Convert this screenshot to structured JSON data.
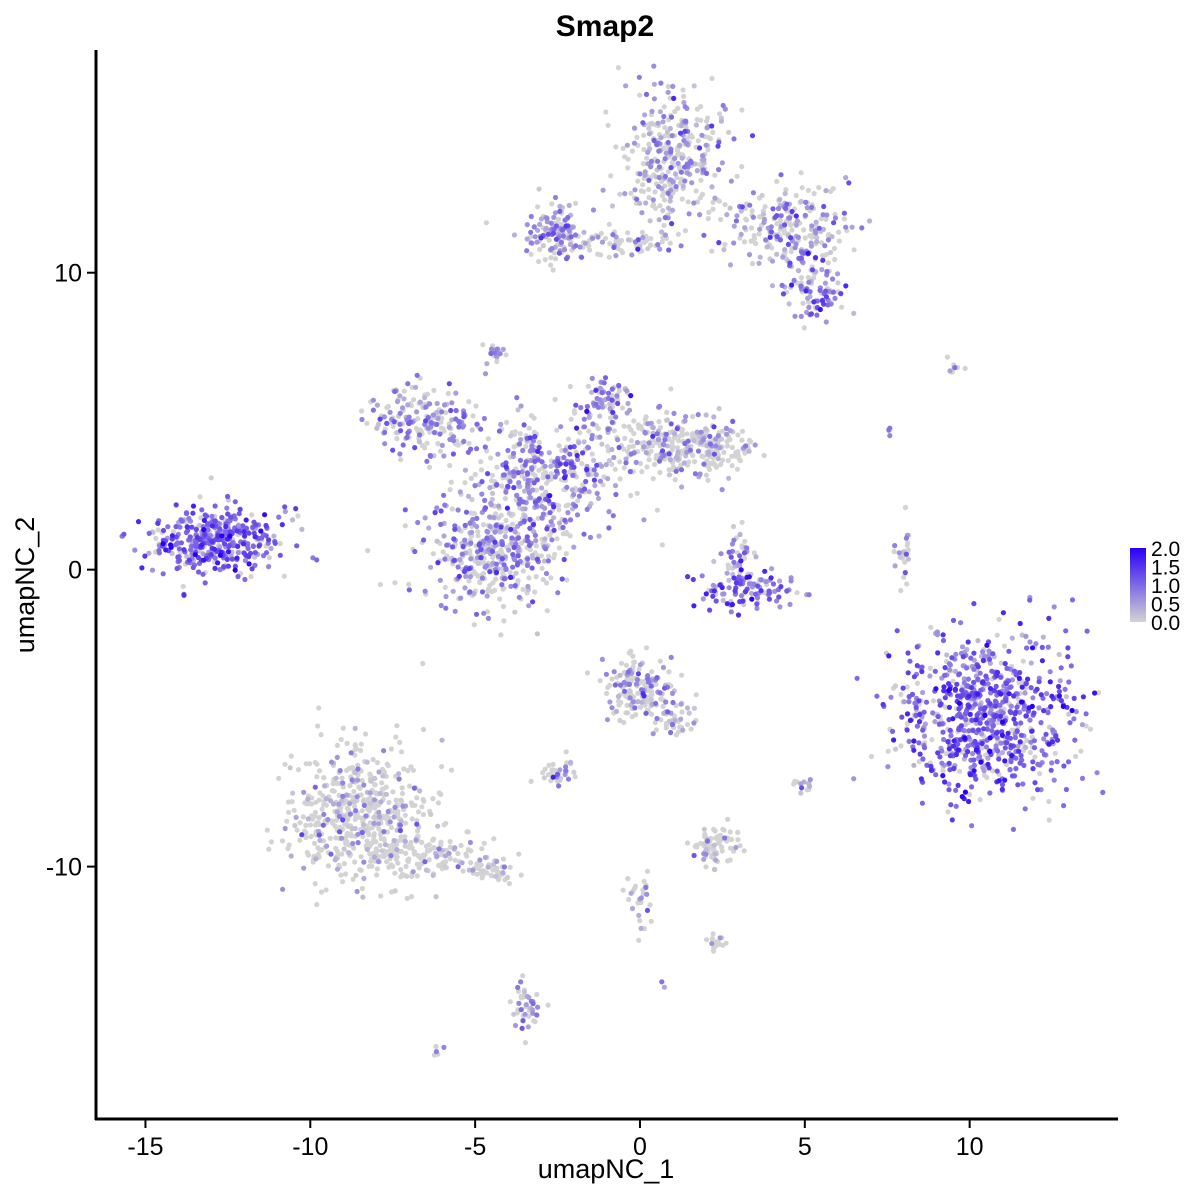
{
  "chart_data": {
    "type": "scatter",
    "title": "Smap2",
    "xlabel": "umapNC_1",
    "ylabel": "umapNC_2",
    "xlim": [
      -16.5,
      14.5
    ],
    "ylim": [
      -18.5,
      17.5
    ],
    "xticks": [
      -15,
      -10,
      -5,
      0,
      5,
      10
    ],
    "yticks": [
      -10,
      0,
      10
    ],
    "xtick_labels": [
      "-15",
      "-10",
      "-5",
      "0",
      "5",
      "10"
    ],
    "ytick_labels": [
      "-10",
      "0",
      "10"
    ],
    "color_scale": {
      "low": "#d3d3d3",
      "high": "#2b00f7",
      "min": 0.0,
      "max": 2.0,
      "legend_breaks": [
        2.0,
        1.5,
        1.0,
        0.5,
        0.0
      ],
      "legend_labels": [
        "2.0",
        "1.5",
        "1.0",
        "0.5",
        "0.0"
      ],
      "legend_position": "right"
    },
    "clusters": [
      {
        "cx": -12.8,
        "cy": 1.0,
        "sx": 1.0,
        "sy": 0.55,
        "n": 420,
        "expr": 0.95
      },
      {
        "cx": -4.5,
        "cy": 0.5,
        "sx": 1.0,
        "sy": 0.9,
        "n": 420,
        "expr": 0.6
      },
      {
        "cx": -3.0,
        "cy": 3.0,
        "sx": 1.3,
        "sy": 1.0,
        "n": 380,
        "expr": 0.7
      },
      {
        "cx": -6.5,
        "cy": 5.0,
        "sx": 0.9,
        "sy": 0.55,
        "n": 200,
        "expr": 0.6
      },
      {
        "cx": 0.5,
        "cy": 4.3,
        "sx": 1.2,
        "sy": 0.5,
        "n": 200,
        "expr": 0.45
      },
      {
        "cx": 2.0,
        "cy": 4.1,
        "sx": 0.8,
        "sy": 0.45,
        "n": 140,
        "expr": 0.25
      },
      {
        "cx": -1.0,
        "cy": 5.8,
        "sx": 0.4,
        "sy": 0.4,
        "n": 70,
        "expr": 0.7
      },
      {
        "cx": 1.0,
        "cy": 13.8,
        "sx": 0.8,
        "sy": 1.1,
        "n": 340,
        "expr": 0.5
      },
      {
        "cx": 4.5,
        "cy": 11.5,
        "sx": 0.9,
        "sy": 0.7,
        "n": 220,
        "expr": 0.55
      },
      {
        "cx": 5.3,
        "cy": 9.5,
        "sx": 0.5,
        "sy": 0.5,
        "n": 100,
        "expr": 0.75
      },
      {
        "cx": -2.5,
        "cy": 11.3,
        "sx": 0.45,
        "sy": 0.5,
        "n": 130,
        "expr": 0.65
      },
      {
        "cx": -0.5,
        "cy": 11.0,
        "sx": 1.0,
        "sy": 0.2,
        "n": 60,
        "expr": 0.5
      },
      {
        "cx": -4.4,
        "cy": 7.3,
        "sx": 0.15,
        "sy": 0.15,
        "n": 25,
        "expr": 0.6
      },
      {
        "cx": 3.3,
        "cy": -0.6,
        "sx": 0.7,
        "sy": 0.35,
        "n": 110,
        "expr": 0.95
      },
      {
        "cx": 3.0,
        "cy": 0.5,
        "sx": 0.3,
        "sy": 0.4,
        "n": 40,
        "expr": 0.6
      },
      {
        "cx": 10.5,
        "cy": -4.8,
        "sx": 1.3,
        "sy": 1.3,
        "n": 780,
        "expr": 1.0
      },
      {
        "cx": 8.3,
        "cy": -4.8,
        "sx": 0.2,
        "sy": 0.4,
        "n": 25,
        "expr": 0.8
      },
      {
        "cx": -8.5,
        "cy": -8.3,
        "sx": 1.0,
        "sy": 1.2,
        "n": 560,
        "expr": 0.18
      },
      {
        "cx": -6.5,
        "cy": -9.6,
        "sx": 0.9,
        "sy": 0.35,
        "n": 120,
        "expr": 0.15
      },
      {
        "cx": -4.5,
        "cy": -10.2,
        "sx": 0.4,
        "sy": 0.2,
        "n": 40,
        "expr": 0.2
      },
      {
        "cx": 0.0,
        "cy": -4.0,
        "sx": 0.6,
        "sy": 0.5,
        "n": 160,
        "expr": 0.45
      },
      {
        "cx": 1.0,
        "cy": -5.0,
        "sx": 0.35,
        "sy": 0.35,
        "n": 45,
        "expr": 0.4
      },
      {
        "cx": 2.3,
        "cy": -9.3,
        "sx": 0.35,
        "sy": 0.3,
        "n": 80,
        "expr": 0.1
      },
      {
        "cx": -2.5,
        "cy": -6.9,
        "sx": 0.3,
        "sy": 0.2,
        "n": 35,
        "expr": 0.4
      },
      {
        "cx": -3.5,
        "cy": -14.8,
        "sx": 0.2,
        "sy": 0.4,
        "n": 45,
        "expr": 0.5
      },
      {
        "cx": 0.0,
        "cy": -11.0,
        "sx": 0.2,
        "sy": 0.5,
        "n": 30,
        "expr": 0.3
      },
      {
        "cx": 2.3,
        "cy": -12.5,
        "sx": 0.2,
        "sy": 0.15,
        "n": 15,
        "expr": 0.3
      },
      {
        "cx": 5.0,
        "cy": -7.2,
        "sx": 0.15,
        "sy": 0.15,
        "n": 12,
        "expr": 0.5
      },
      {
        "cx": 8.0,
        "cy": 0.3,
        "sx": 0.15,
        "sy": 0.5,
        "n": 25,
        "expr": 0.4
      },
      {
        "cx": -6.1,
        "cy": -16.2,
        "sx": 0.08,
        "sy": 0.08,
        "n": 5,
        "expr": 0.1
      },
      {
        "cx": 9.5,
        "cy": 6.7,
        "sx": 0.2,
        "sy": 0.2,
        "n": 8,
        "expr": 0.4
      },
      {
        "cx": 7.6,
        "cy": 4.7,
        "sx": 0.08,
        "sy": 0.15,
        "n": 4,
        "expr": 0.6
      },
      {
        "cx": 0.7,
        "cy": -14.0,
        "sx": 0.05,
        "sy": 0.05,
        "n": 2,
        "expr": 0.8
      }
    ]
  }
}
